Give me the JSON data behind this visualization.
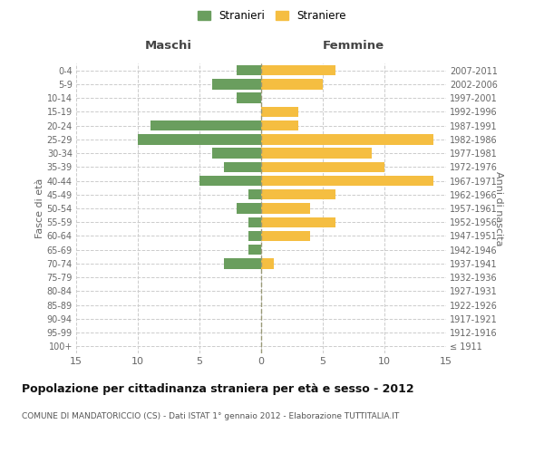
{
  "age_groups": [
    "100+",
    "95-99",
    "90-94",
    "85-89",
    "80-84",
    "75-79",
    "70-74",
    "65-69",
    "60-64",
    "55-59",
    "50-54",
    "45-49",
    "40-44",
    "35-39",
    "30-34",
    "25-29",
    "20-24",
    "15-19",
    "10-14",
    "5-9",
    "0-4"
  ],
  "birth_years": [
    "≤ 1911",
    "1912-1916",
    "1917-1921",
    "1922-1926",
    "1927-1931",
    "1932-1936",
    "1937-1941",
    "1942-1946",
    "1947-1951",
    "1952-1956",
    "1957-1961",
    "1962-1966",
    "1967-1971",
    "1972-1976",
    "1977-1981",
    "1982-1986",
    "1987-1991",
    "1992-1996",
    "1997-2001",
    "2002-2006",
    "2007-2011"
  ],
  "maschi": [
    0,
    0,
    0,
    0,
    0,
    0,
    3,
    1,
    1,
    1,
    2,
    1,
    5,
    3,
    4,
    10,
    9,
    0,
    2,
    4,
    2
  ],
  "femmine": [
    0,
    0,
    0,
    0,
    0,
    0,
    1,
    0,
    4,
    6,
    4,
    6,
    14,
    10,
    9,
    14,
    3,
    3,
    0,
    5,
    6
  ],
  "maschi_color": "#6a9e5e",
  "femmine_color": "#f5be41",
  "grid_color": "#cccccc",
  "title": "Popolazione per cittadinanza straniera per età e sesso - 2012",
  "subtitle": "COMUNE DI MANDATORICCIO (CS) - Dati ISTAT 1° gennaio 2012 - Elaborazione TUTTITALIA.IT",
  "xlabel_left": "Maschi",
  "xlabel_right": "Femmine",
  "ylabel_left": "Fasce di età",
  "ylabel_right": "Anni di nascita",
  "legend_maschi": "Stranieri",
  "legend_femmine": "Straniere",
  "xlim": 15,
  "background_color": "#ffffff",
  "bar_height": 0.75
}
